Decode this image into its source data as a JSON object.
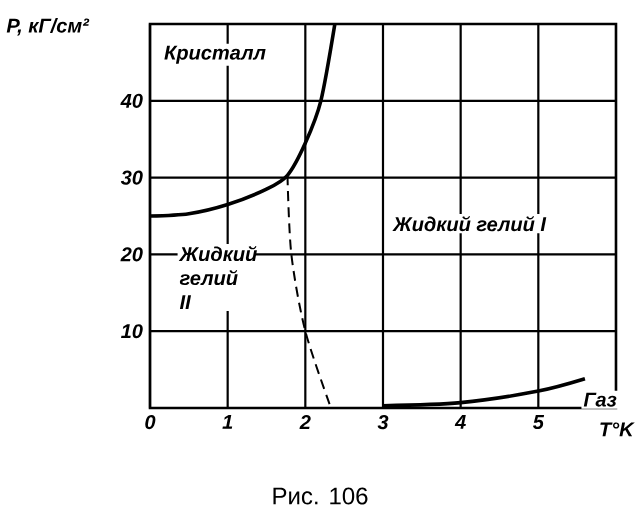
{
  "chart_data": {
    "type": "line",
    "xlabel": "T°K",
    "ylabel": "P, кГ/см²",
    "xlim": [
      0,
      6
    ],
    "ylim": [
      0,
      50
    ],
    "xticks": [
      0,
      1,
      2,
      3,
      4,
      5
    ],
    "yticks": [
      10,
      20,
      30,
      40
    ],
    "grid": true,
    "line_style": "solid",
    "series": [
      {
        "color": "#000000",
        "x": [
          0,
          0.5,
          1,
          1.5,
          1.77,
          2,
          2.2,
          2.38
        ],
        "values": [
          25,
          25.3,
          26.5,
          28.5,
          30.3,
          34.5,
          40,
          50
        ]
      },
      {
        "color": "#000000",
        "line_style": "dashed",
        "x": [
          1.77,
          1.82,
          2.0,
          2.33
        ],
        "values": [
          30.3,
          20,
          10,
          0
        ]
      },
      {
        "color": "#000000",
        "x": [
          3,
          4,
          5,
          5.6
        ],
        "values": [
          0.3,
          0.7,
          2.2,
          3.8
        ]
      }
    ],
    "annotations": [
      "Кристалл",
      "Жидкий гелий I",
      "Жидкий гелий II",
      "Газ",
      "Рис. 106"
    ]
  }
}
